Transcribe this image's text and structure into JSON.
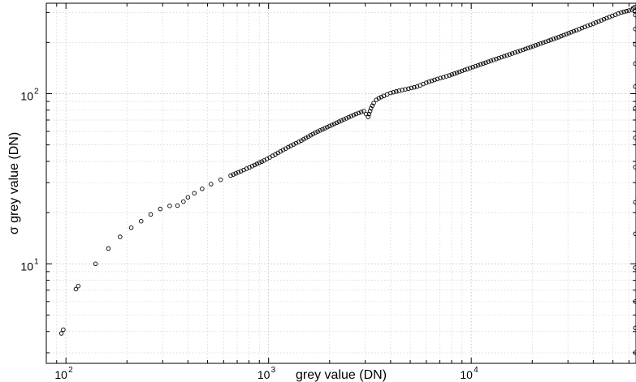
{
  "chart_data": {
    "type": "scatter",
    "xlabel": "grey value (DN)",
    "ylabel": "σ grey value (DN)",
    "x_scale": "log",
    "y_scale": "log",
    "xlim": [
      80,
      65000
    ],
    "ylim": [
      2.6,
      340
    ],
    "grid": true,
    "x_ticks": [
      {
        "value": 100,
        "base": "10",
        "exp": "2"
      },
      {
        "value": 1000,
        "base": "10",
        "exp": "3"
      },
      {
        "value": 10000,
        "base": "10",
        "exp": "4"
      }
    ],
    "y_ticks": [
      {
        "value": 10,
        "label": "10",
        "exp": "1"
      },
      {
        "value": 100,
        "label": "10",
        "exp": "2"
      }
    ],
    "series": [
      {
        "marker": "open-circle",
        "color": "#000000",
        "x": [
          95,
          97,
          112,
          115,
          140,
          162,
          185,
          210,
          235,
          262,
          292,
          325,
          355,
          380,
          400,
          430,
          470,
          520,
          580,
          650,
          730,
          830,
          950,
          1080,
          1250,
          1450,
          1700,
          2000,
          2350,
          2700,
          2950,
          3100,
          3200,
          3300,
          3400,
          3500,
          3700,
          4000,
          4400,
          4900,
          5400,
          6000,
          6800,
          7800,
          9000,
          10500,
          12500,
          15000,
          18000,
          22000,
          27000,
          33000,
          40000,
          48000,
          55000,
          60000,
          62000,
          63000,
          64000,
          64500,
          64500,
          64500,
          64500,
          64500,
          64500,
          64500,
          64500,
          64500,
          64500,
          64500,
          64500,
          64500,
          64500
        ],
        "y": [
          3.9,
          4.1,
          7.1,
          7.4,
          10.0,
          12.3,
          14.4,
          16.3,
          17.8,
          19.5,
          21.0,
          21.9,
          22.0,
          23.2,
          24.6,
          26.0,
          27.6,
          29.4,
          31.2,
          33.0,
          35.0,
          37.5,
          40.5,
          44.0,
          48.5,
          53.0,
          59.0,
          64.5,
          70.5,
          76.0,
          79.0,
          73.0,
          82.0,
          88.0,
          92.0,
          94.0,
          97.0,
          101.0,
          104.0,
          107.0,
          110.0,
          116.0,
          122.0,
          128.0,
          136.0,
          145.0,
          156.0,
          168.0,
          181.0,
          197.0,
          215.0,
          236.0,
          258.0,
          282.0,
          300.0,
          308.0,
          312.0,
          318.0,
          322.0,
          290.0,
          240.0,
          195.0,
          150.0,
          110.0,
          82.0,
          55.0,
          37.0,
          23.0,
          15.0,
          9.5,
          6.0,
          4.2,
          3.0
        ]
      }
    ]
  }
}
